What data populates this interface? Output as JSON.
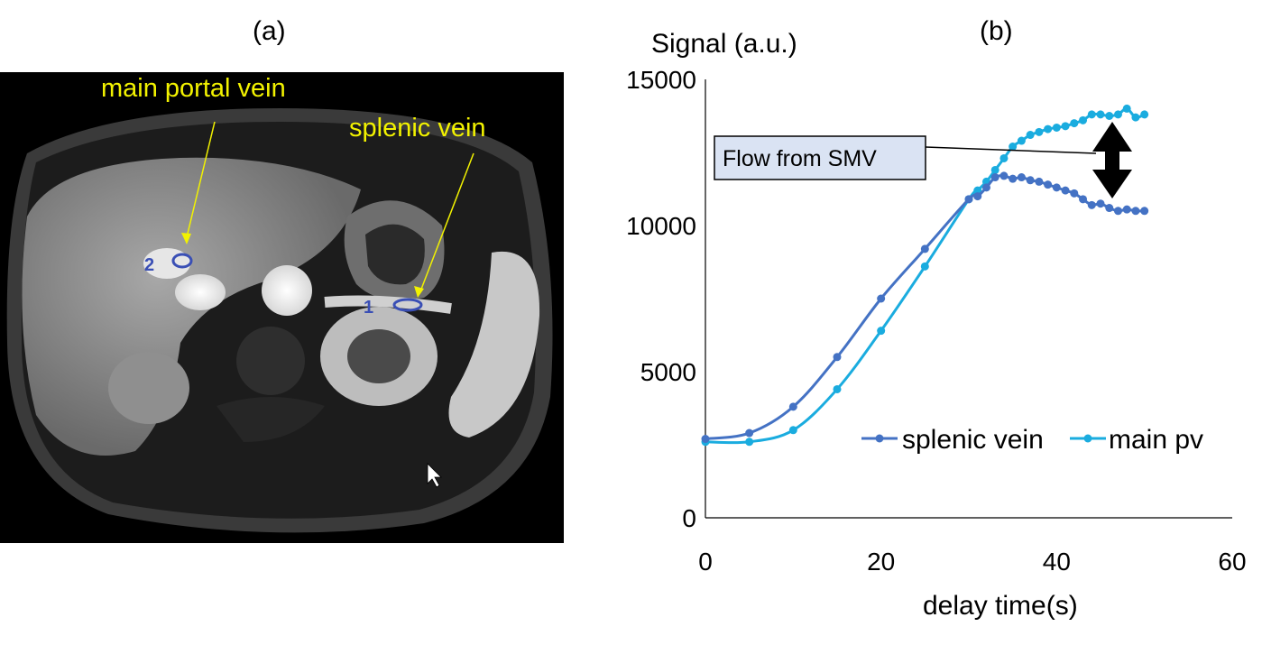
{
  "panels": {
    "a_label": "(a)",
    "b_label": "(b)"
  },
  "mri": {
    "labels": {
      "main_portal_vein": "main portal vein",
      "splenic_vein": "splenic vein"
    },
    "roi_numbers": {
      "portal": "2",
      "splenic": "1"
    },
    "colors": {
      "label": "#f2f200",
      "roi": "#3a4fb5"
    }
  },
  "chart_data": {
    "type": "line",
    "title": "",
    "ylabel": "Signal (a.u.)",
    "xlabel": "delay time(s)",
    "xlim": [
      0,
      60
    ],
    "ylim": [
      0,
      15000
    ],
    "xticks": [
      0,
      20,
      40,
      60
    ],
    "yticks": [
      0,
      5000,
      10000,
      15000
    ],
    "legend_position": "bottom-right",
    "annotation": "Flow from SMV",
    "series": [
      {
        "name": "splenic vein",
        "color": "#4472c4",
        "x": [
          0,
          5,
          10,
          15,
          20,
          25,
          30,
          31,
          32,
          33,
          34,
          35,
          36,
          37,
          38,
          39,
          40,
          41,
          42,
          43,
          44,
          45,
          46,
          47,
          48,
          49,
          50
        ],
        "y": [
          2700,
          2900,
          3800,
          5500,
          7500,
          9200,
          10900,
          11000,
          11300,
          11650,
          11700,
          11600,
          11650,
          11550,
          11500,
          11400,
          11300,
          11200,
          11100,
          10900,
          10700,
          10750,
          10600,
          10500,
          10550,
          10500,
          10500
        ]
      },
      {
        "name": "main pv",
        "color": "#1aacdf",
        "x": [
          0,
          5,
          10,
          15,
          20,
          25,
          30,
          31,
          32,
          33,
          34,
          35,
          36,
          37,
          38,
          39,
          40,
          41,
          42,
          43,
          44,
          45,
          46,
          47,
          48,
          49,
          50
        ],
        "y": [
          2600,
          2600,
          3000,
          4400,
          6400,
          8600,
          10900,
          11200,
          11500,
          11900,
          12300,
          12700,
          12900,
          13100,
          13200,
          13300,
          13350,
          13400,
          13500,
          13600,
          13800,
          13800,
          13750,
          13800,
          14000,
          13700,
          13800
        ]
      }
    ]
  }
}
